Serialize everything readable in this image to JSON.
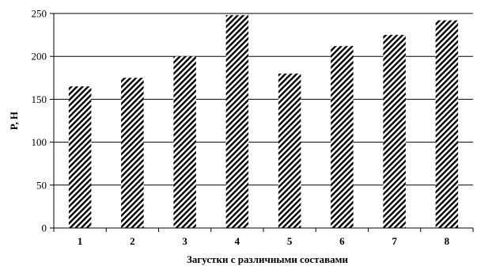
{
  "chart_data": {
    "type": "bar",
    "title": "",
    "xlabel": "Загустки с различными составами",
    "ylabel": "P, Н",
    "categories": [
      "1",
      "2",
      "3",
      "4",
      "5",
      "6",
      "7",
      "8"
    ],
    "values": [
      165,
      175,
      200,
      248,
      180,
      212,
      225,
      242
    ],
    "ylim": [
      0,
      250
    ],
    "yticks": [
      0,
      50,
      100,
      150,
      200,
      250
    ],
    "grid": true,
    "legend": "none",
    "bar_fill": "diagonal-hatch",
    "colors": {
      "bar": "#000000",
      "background": "#ffffff",
      "grid": "#000000"
    }
  }
}
